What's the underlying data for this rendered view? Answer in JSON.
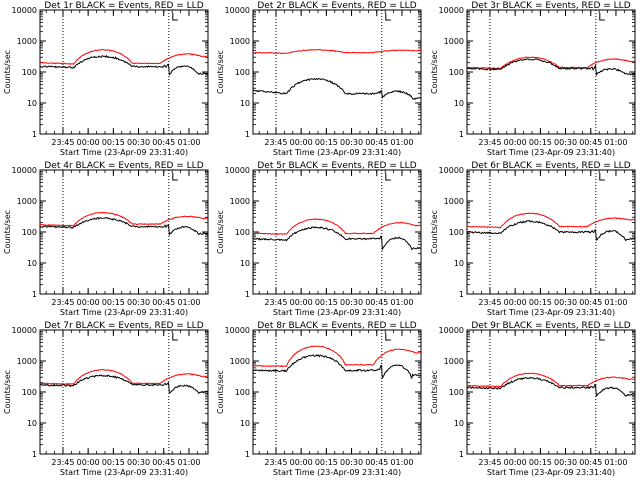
{
  "colors": {
    "background": "#ffffff",
    "axes": "#000000",
    "events": "#000000",
    "lld": "#ff0000",
    "vlines": "#000000"
  },
  "chart_data": [
    {
      "type": "line",
      "title": "Det 1r BLACK = Events, RED = LLD",
      "xlabel": "Start Time (23-Apr-09 23:31:40)",
      "ylabel": "Counts/sec",
      "yscale": "log",
      "ylim": [
        1,
        10000
      ],
      "ytick_labels": [
        "1",
        "10",
        "100",
        "1000",
        "10000"
      ],
      "xtick_labels": [
        "23:45",
        "00:00",
        "00:15",
        "00:30",
        "00:45",
        "01:00"
      ],
      "events_sample": [
        150,
        140,
        320,
        150,
        260,
        150,
        80,
        90
      ],
      "lld_sample": [
        200,
        180,
        520,
        190,
        380,
        210
      ]
    },
    {
      "type": "line",
      "title": "Det 2r BLACK = Events, RED = LLD",
      "xlabel": "Start Time (23-Apr-09 23:31:40)",
      "ylabel": "Counts/sec",
      "yscale": "log",
      "ylim": [
        1,
        10000
      ],
      "ytick_labels": [
        "1",
        "10",
        "100",
        "1000",
        "10000"
      ],
      "xtick_labels": [
        "23:45",
        "00:00",
        "00:15",
        "00:30",
        "00:45",
        "01:00"
      ],
      "events_sample": [
        25,
        20,
        60,
        20,
        40,
        22,
        15,
        14
      ],
      "lld_sample": [
        420,
        400,
        520,
        420,
        500,
        450
      ]
    },
    {
      "type": "line",
      "title": "Det 3r BLACK = Events, RED = LLD",
      "xlabel": "Start Time (23-Apr-09 23:31:40)",
      "ylabel": "Counts/sec",
      "yscale": "log",
      "ylim": [
        1,
        10000
      ],
      "ytick_labels": [
        "1",
        "10",
        "100",
        "1000",
        "10000"
      ],
      "xtick_labels": [
        "23:45",
        "00:00",
        "00:15",
        "00:30",
        "00:45",
        "01:00"
      ],
      "events_sample": [
        130,
        120,
        260,
        130,
        210,
        120,
        80,
        85
      ],
      "lld_sample": [
        140,
        130,
        300,
        140,
        260,
        150
      ]
    },
    {
      "type": "line",
      "title": "Det 4r BLACK = Events, RED = LLD",
      "xlabel": "Start Time (23-Apr-09 23:31:40)",
      "ylabel": "Counts/sec",
      "yscale": "log",
      "ylim": [
        1,
        10000
      ],
      "ytick_labels": [
        "1",
        "10",
        "100",
        "1000",
        "10000"
      ],
      "xtick_labels": [
        "23:45",
        "00:00",
        "00:15",
        "00:30",
        "00:45",
        "01:00"
      ],
      "events_sample": [
        150,
        140,
        280,
        150,
        240,
        150,
        80,
        90
      ],
      "lld_sample": [
        170,
        160,
        420,
        180,
        320,
        200
      ]
    },
    {
      "type": "line",
      "title": "Det 5r BLACK = Events, RED = LLD",
      "xlabel": "Start Time (23-Apr-09 23:31:40)",
      "ylabel": "Counts/sec",
      "yscale": "log",
      "ylim": [
        1,
        10000
      ],
      "ytick_labels": [
        "1",
        "10",
        "100",
        "1000",
        "10000"
      ],
      "xtick_labels": [
        "23:45",
        "00:00",
        "00:15",
        "00:30",
        "00:45",
        "01:00"
      ],
      "events_sample": [
        60,
        55,
        140,
        60,
        110,
        60,
        25,
        30
      ],
      "lld_sample": [
        90,
        85,
        260,
        90,
        200,
        100
      ]
    },
    {
      "type": "line",
      "title": "Det 6r BLACK = Events, RED = LLD",
      "xlabel": "Start Time (23-Apr-09 23:31:40)",
      "ylabel": "Counts/sec",
      "yscale": "log",
      "ylim": [
        1,
        10000
      ],
      "ytick_labels": [
        "1",
        "10",
        "100",
        "1000",
        "10000"
      ],
      "xtick_labels": [
        "23:45",
        "00:00",
        "00:15",
        "00:30",
        "00:45",
        "01:00"
      ],
      "events_sample": [
        100,
        90,
        220,
        100,
        180,
        100,
        50,
        60
      ],
      "lld_sample": [
        150,
        140,
        400,
        150,
        280,
        180
      ]
    },
    {
      "type": "line",
      "title": "Det 7r BLACK = Events, RED = LLD",
      "xlabel": "Start Time (23-Apr-09 23:31:40)",
      "ylabel": "Counts/sec",
      "yscale": "log",
      "ylim": [
        1,
        10000
      ],
      "ytick_labels": [
        "1",
        "10",
        "100",
        "1000",
        "10000"
      ],
      "xtick_labels": [
        "23:45",
        "00:00",
        "00:15",
        "00:30",
        "00:45",
        "01:00"
      ],
      "events_sample": [
        170,
        160,
        340,
        170,
        270,
        170,
        90,
        100
      ],
      "lld_sample": [
        190,
        180,
        520,
        190,
        380,
        210
      ]
    },
    {
      "type": "line",
      "title": "Det 8r BLACK = Events, RED = LLD",
      "xlabel": "Start Time (23-Apr-09 23:31:40)",
      "ylabel": "Counts/sec",
      "yscale": "log",
      "ylim": [
        1,
        10000
      ],
      "ytick_labels": [
        "1",
        "10",
        "100",
        "1000",
        "10000"
      ],
      "xtick_labels": [
        "23:45",
        "00:00",
        "00:15",
        "00:30",
        "00:45",
        "01:00"
      ],
      "events_sample": [
        500,
        480,
        1500,
        500,
        1200,
        550,
        250,
        350
      ],
      "lld_sample": [
        700,
        680,
        3000,
        750,
        2400,
        900
      ]
    },
    {
      "type": "line",
      "title": "Det 9r BLACK = Events, RED = LLD",
      "xlabel": "Start Time (23-Apr-09 23:31:40)",
      "ylabel": "Counts/sec",
      "yscale": "log",
      "ylim": [
        1,
        10000
      ],
      "ytick_labels": [
        "1",
        "10",
        "100",
        "1000",
        "10000"
      ],
      "xtick_labels": [
        "23:45",
        "00:00",
        "00:15",
        "00:30",
        "00:45",
        "01:00"
      ],
      "events_sample": [
        140,
        130,
        280,
        140,
        230,
        140,
        70,
        80
      ],
      "lld_sample": [
        160,
        150,
        400,
        160,
        300,
        180
      ]
    }
  ]
}
